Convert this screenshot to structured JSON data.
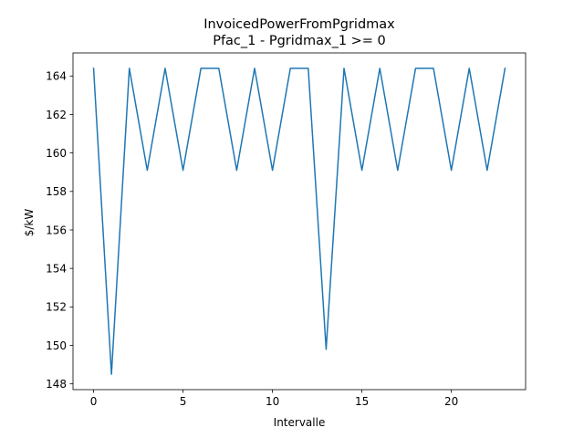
{
  "chart_data": {
    "type": "line",
    "title": "InvoicedPowerFromPgridmax",
    "subtitle": "Pfac_1 - Pgridmax_1 >= 0",
    "xlabel": "Intervalle",
    "ylabel": "$/kW",
    "xlim": [
      -1.15,
      24.15
    ],
    "ylim": [
      147.7,
      165.2
    ],
    "xticks": [
      0,
      5,
      10,
      15,
      20
    ],
    "yticks": [
      148,
      150,
      152,
      154,
      156,
      158,
      160,
      162,
      164
    ],
    "grid": false,
    "legend": "none",
    "series": [
      {
        "color": "#1f77b4",
        "x": [
          0,
          1,
          2,
          3,
          4,
          5,
          6,
          7,
          8,
          9,
          10,
          11,
          12,
          13,
          14,
          15,
          16,
          17,
          18,
          19,
          20,
          21,
          22,
          23
        ],
        "values": [
          164.4,
          148.5,
          164.4,
          159.1,
          164.4,
          159.1,
          164.4,
          164.4,
          159.1,
          164.4,
          159.1,
          164.4,
          164.4,
          149.8,
          164.4,
          159.1,
          164.4,
          159.1,
          164.4,
          164.4,
          159.1,
          164.4,
          159.1,
          164.4
        ]
      }
    ]
  }
}
